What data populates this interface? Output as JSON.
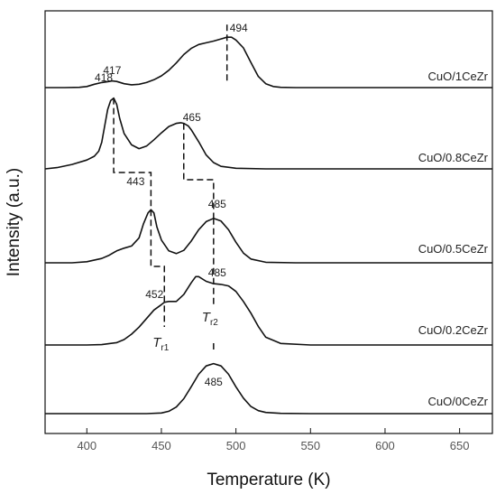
{
  "chart_data": {
    "type": "line",
    "xlabel": "Temperature (K)",
    "ylabel": "Intensity (a.u.)",
    "xlim": [
      372,
      672
    ],
    "x_ticks": [
      400,
      450,
      500,
      550,
      600,
      650
    ],
    "grid": false,
    "series": [
      {
        "name": "CuO/1CeZr",
        "x": [
          372,
          385,
          395,
          400,
          405,
          410,
          415,
          417,
          420,
          425,
          430,
          435,
          440,
          445,
          450,
          455,
          460,
          465,
          470,
          475,
          480,
          485,
          490,
          494,
          497,
          500,
          505,
          510,
          515,
          520,
          525,
          530,
          540,
          560,
          600,
          672
        ],
        "y": [
          0.0,
          0.0,
          0.005,
          0.02,
          0.06,
          0.09,
          0.11,
          0.12,
          0.11,
          0.07,
          0.05,
          0.06,
          0.09,
          0.14,
          0.21,
          0.31,
          0.44,
          0.59,
          0.7,
          0.77,
          0.8,
          0.83,
          0.87,
          0.9,
          0.9,
          0.85,
          0.71,
          0.45,
          0.2,
          0.07,
          0.02,
          0.005,
          0.0,
          0.0,
          0.0,
          0.0
        ]
      },
      {
        "name": "CuO/0.8CeZr",
        "x": [
          372,
          380,
          390,
          400,
          405,
          408,
          410,
          412,
          414,
          416,
          418,
          420,
          422,
          425,
          430,
          435,
          440,
          445,
          450,
          455,
          460,
          463,
          465,
          468,
          470,
          475,
          480,
          485,
          490,
          500,
          520,
          560,
          600,
          672
        ],
        "y": [
          0.0,
          0.02,
          0.07,
          0.14,
          0.2,
          0.28,
          0.42,
          0.68,
          0.94,
          1.08,
          1.12,
          1.02,
          0.8,
          0.56,
          0.38,
          0.32,
          0.36,
          0.46,
          0.57,
          0.67,
          0.72,
          0.73,
          0.72,
          0.68,
          0.62,
          0.43,
          0.22,
          0.1,
          0.04,
          0.01,
          0.0,
          0.0,
          0.0,
          0.0
        ]
      },
      {
        "name": "CuO/0.5CeZr",
        "x": [
          372,
          390,
          400,
          410,
          415,
          420,
          425,
          430,
          435,
          438,
          441,
          443,
          445,
          447,
          450,
          455,
          460,
          465,
          470,
          475,
          480,
          485,
          490,
          495,
          500,
          505,
          510,
          520,
          540,
          570,
          672
        ],
        "y": [
          0.0,
          0.0,
          0.02,
          0.08,
          0.14,
          0.22,
          0.27,
          0.31,
          0.46,
          0.72,
          0.92,
          0.98,
          0.92,
          0.66,
          0.42,
          0.22,
          0.17,
          0.23,
          0.4,
          0.61,
          0.76,
          0.82,
          0.77,
          0.61,
          0.38,
          0.18,
          0.07,
          0.01,
          0.0,
          0.0,
          0.0
        ]
      },
      {
        "name": "CuO/0.2CeZr",
        "x": [
          372,
          400,
          410,
          420,
          425,
          430,
          435,
          440,
          445,
          450,
          452,
          455,
          460,
          465,
          470,
          473,
          475,
          480,
          485,
          490,
          495,
          500,
          505,
          510,
          515,
          520,
          530,
          550,
          600,
          672
        ],
        "y": [
          0.0,
          0.0,
          0.005,
          0.03,
          0.07,
          0.14,
          0.23,
          0.34,
          0.45,
          0.52,
          0.55,
          0.56,
          0.56,
          0.65,
          0.8,
          0.88,
          0.88,
          0.82,
          0.79,
          0.78,
          0.76,
          0.69,
          0.56,
          0.41,
          0.24,
          0.1,
          0.02,
          0.0,
          0.0,
          0.0
        ]
      },
      {
        "name": "CuO/0CeZr",
        "x": [
          372,
          420,
          440,
          450,
          455,
          460,
          465,
          470,
          475,
          480,
          485,
          490,
          495,
          500,
          505,
          510,
          515,
          520,
          530,
          550,
          600,
          672
        ],
        "y": [
          0.0,
          0.0,
          0.0,
          0.01,
          0.04,
          0.11,
          0.25,
          0.45,
          0.66,
          0.8,
          0.84,
          0.8,
          0.66,
          0.45,
          0.26,
          0.12,
          0.05,
          0.02,
          0.005,
          0.0,
          0.0,
          0.0
        ]
      }
    ],
    "peak_labels": [
      {
        "series": 0,
        "x": 417,
        "text": "417"
      },
      {
        "series": 0,
        "x": 494,
        "text": "494"
      },
      {
        "series": 1,
        "x": 418,
        "text": "418"
      },
      {
        "series": 1,
        "x": 465,
        "text": "465"
      },
      {
        "series": 2,
        "x": 443,
        "text": "443"
      },
      {
        "series": 2,
        "x": 485,
        "text": "485"
      },
      {
        "series": 3,
        "x": 452,
        "text": "452"
      },
      {
        "series": 3,
        "x": 485,
        "text": "485"
      },
      {
        "series": 4,
        "x": 485,
        "text": "485"
      }
    ],
    "reduction_labels": [
      {
        "main": "T",
        "sub": "r1",
        "x": 452
      },
      {
        "main": "T",
        "sub": "r2",
        "x": 485
      }
    ]
  }
}
